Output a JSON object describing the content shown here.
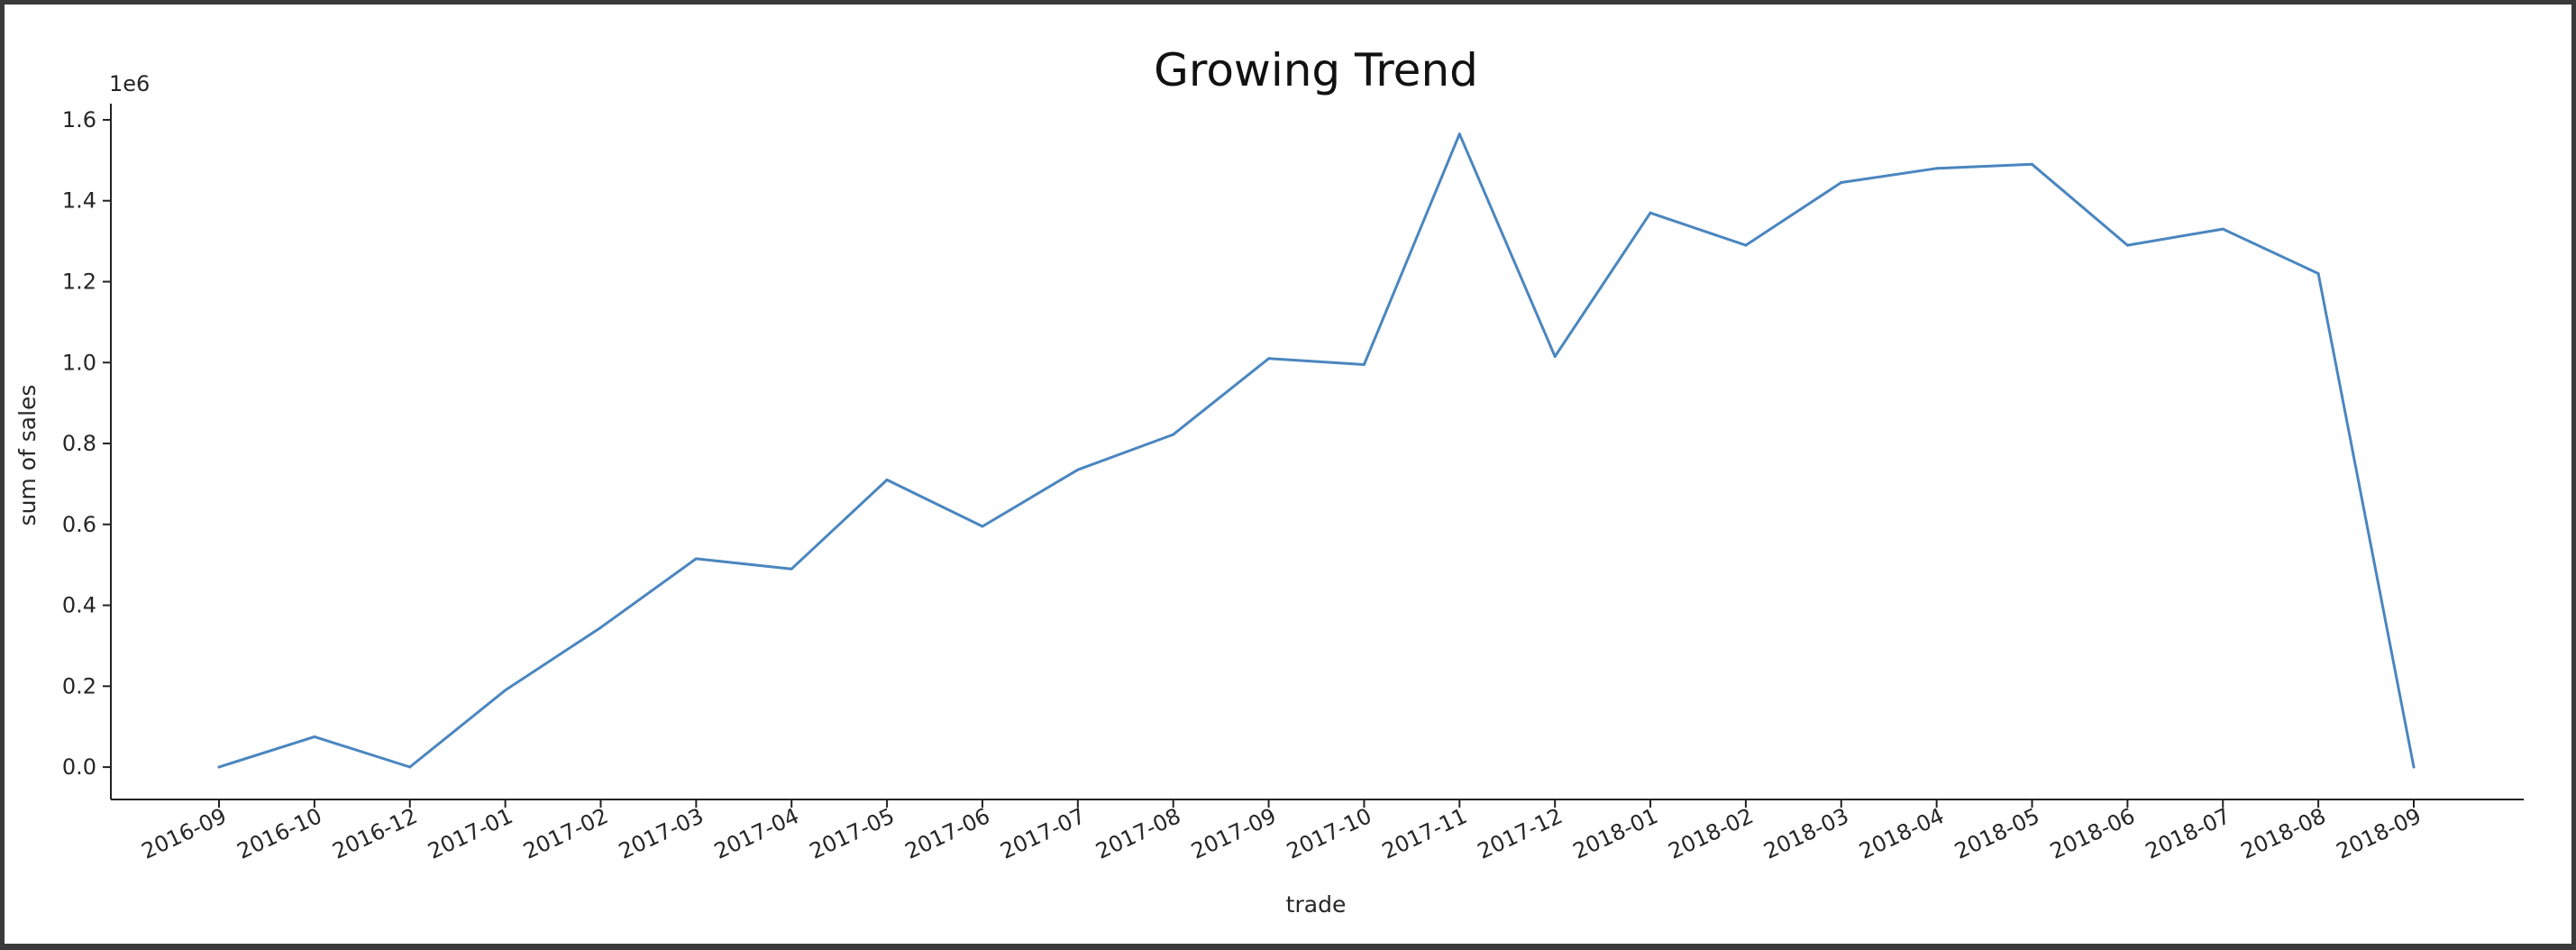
{
  "chart_data": {
    "type": "line",
    "title": "Growing Trend",
    "xlabel": "trade",
    "ylabel": "sum of sales",
    "y_offset_label": "1e6",
    "ylim": [
      -0.08,
      1.64
    ],
    "yticks": [
      0.0,
      0.2,
      0.4,
      0.6,
      0.8,
      1.0,
      1.2,
      1.4,
      1.6
    ],
    "ytick_labels": [
      "0.0",
      "0.2",
      "0.4",
      "0.6",
      "0.8",
      "1.0",
      "1.2",
      "1.4",
      "1.6"
    ],
    "categories": [
      "2016-09",
      "2016-10",
      "2016-12",
      "2017-01",
      "2017-02",
      "2017-03",
      "2017-04",
      "2017-05",
      "2017-06",
      "2017-07",
      "2017-08",
      "2017-09",
      "2017-10",
      "2017-11",
      "2017-12",
      "2018-01",
      "2018-02",
      "2018-03",
      "2018-04",
      "2018-05",
      "2018-06",
      "2018-07",
      "2018-08",
      "2018-09"
    ],
    "series": [
      {
        "values": [
          0.0003,
          0.075,
          0.0003,
          0.19,
          0.345,
          0.515,
          0.49,
          0.71,
          0.595,
          0.735,
          0.822,
          1.01,
          0.995,
          1.565,
          1.015,
          1.37,
          1.29,
          1.445,
          1.48,
          1.49,
          1.29,
          1.33,
          1.22,
          0.0001
        ],
        "color": "#4a86bf"
      }
    ],
    "grid": false
  }
}
